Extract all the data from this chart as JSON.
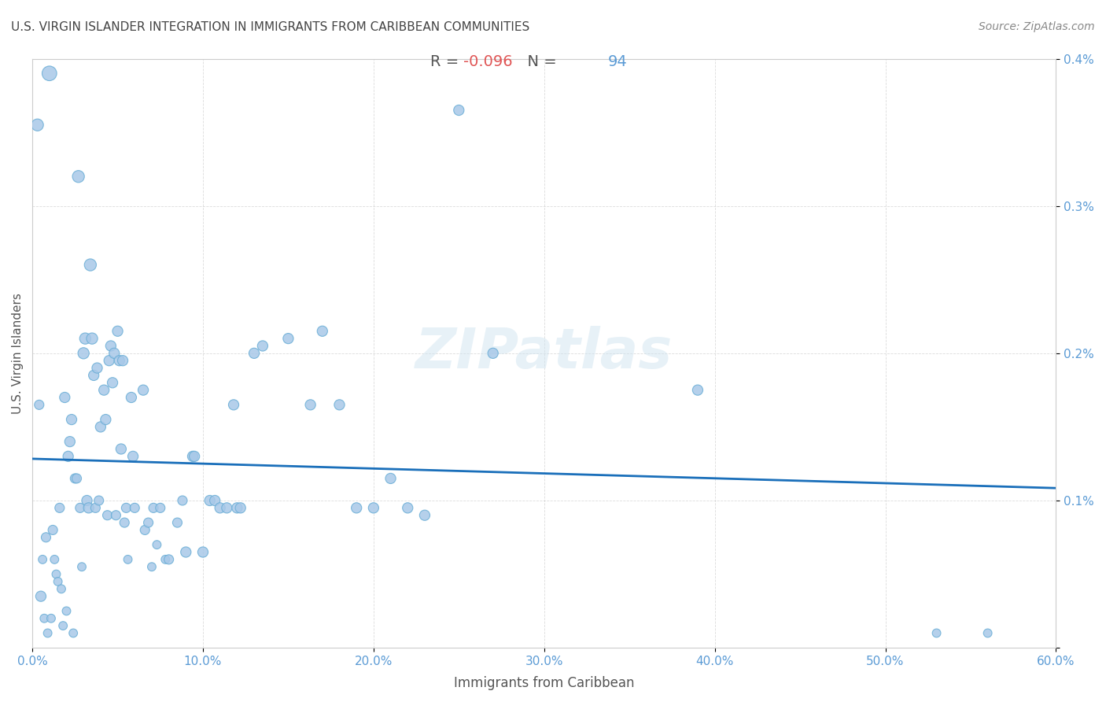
{
  "title": "U.S. VIRGIN ISLANDER INTEGRATION IN IMMIGRANTS FROM CARIBBEAN COMMUNITIES",
  "source": "Source: ZipAtlas.com",
  "xlabel": "Immigrants from Caribbean",
  "ylabel": "U.S. Virgin Islanders",
  "R": "-0.096",
  "N": "94",
  "xlim": [
    0.0,
    0.6
  ],
  "ylim": [
    0.0,
    0.004
  ],
  "xticks": [
    0.0,
    0.1,
    0.2,
    0.3,
    0.4,
    0.5,
    0.6
  ],
  "yticks": [
    0.0,
    0.001,
    0.002,
    0.003,
    0.004
  ],
  "xtick_labels": [
    "0.0%",
    "10.0%",
    "20.0%",
    "30.0%",
    "40.0%",
    "50.0%",
    "60.0%"
  ],
  "ytick_labels": [
    "",
    "0.1%",
    "0.2%",
    "0.3%",
    "0.4%"
  ],
  "scatter_color": "#a8c8e8",
  "scatter_edge_color": "#6aaed6",
  "line_color": "#1a6fba",
  "background_color": "#ffffff",
  "watermark": "ZIPatlas",
  "scatter_data": [
    [
      0.003,
      0.00355
    ],
    [
      0.004,
      0.00165
    ],
    [
      0.005,
      0.00035
    ],
    [
      0.006,
      0.0006
    ],
    [
      0.007,
      0.0002
    ],
    [
      0.008,
      0.00075
    ],
    [
      0.009,
      0.0001
    ],
    [
      0.01,
      0.0039
    ],
    [
      0.011,
      0.0002
    ],
    [
      0.012,
      0.0008
    ],
    [
      0.013,
      0.0006
    ],
    [
      0.014,
      0.0005
    ],
    [
      0.015,
      0.00045
    ],
    [
      0.016,
      0.00095
    ],
    [
      0.017,
      0.0004
    ],
    [
      0.018,
      0.00015
    ],
    [
      0.019,
      0.0017
    ],
    [
      0.02,
      0.00025
    ],
    [
      0.021,
      0.0013
    ],
    [
      0.022,
      0.0014
    ],
    [
      0.023,
      0.00155
    ],
    [
      0.024,
      0.0001
    ],
    [
      0.025,
      0.00115
    ],
    [
      0.026,
      0.00115
    ],
    [
      0.027,
      0.0032
    ],
    [
      0.028,
      0.00095
    ],
    [
      0.029,
      0.00055
    ],
    [
      0.03,
      0.002
    ],
    [
      0.031,
      0.0021
    ],
    [
      0.032,
      0.001
    ],
    [
      0.033,
      0.00095
    ],
    [
      0.034,
      0.0026
    ],
    [
      0.035,
      0.0021
    ],
    [
      0.036,
      0.00185
    ],
    [
      0.037,
      0.00095
    ],
    [
      0.038,
      0.0019
    ],
    [
      0.039,
      0.001
    ],
    [
      0.04,
      0.0015
    ],
    [
      0.042,
      0.00175
    ],
    [
      0.043,
      0.00155
    ],
    [
      0.044,
      0.0009
    ],
    [
      0.045,
      0.00195
    ],
    [
      0.046,
      0.00205
    ],
    [
      0.047,
      0.0018
    ],
    [
      0.048,
      0.002
    ],
    [
      0.049,
      0.0009
    ],
    [
      0.05,
      0.00215
    ],
    [
      0.051,
      0.00195
    ],
    [
      0.052,
      0.00135
    ],
    [
      0.053,
      0.00195
    ],
    [
      0.054,
      0.00085
    ],
    [
      0.055,
      0.00095
    ],
    [
      0.056,
      0.0006
    ],
    [
      0.058,
      0.0017
    ],
    [
      0.059,
      0.0013
    ],
    [
      0.06,
      0.00095
    ],
    [
      0.065,
      0.00175
    ],
    [
      0.066,
      0.0008
    ],
    [
      0.068,
      0.00085
    ],
    [
      0.07,
      0.00055
    ],
    [
      0.071,
      0.00095
    ],
    [
      0.073,
      0.0007
    ],
    [
      0.075,
      0.00095
    ],
    [
      0.078,
      0.0006
    ],
    [
      0.08,
      0.0006
    ],
    [
      0.085,
      0.00085
    ],
    [
      0.088,
      0.001
    ],
    [
      0.09,
      0.00065
    ],
    [
      0.094,
      0.0013
    ],
    [
      0.095,
      0.0013
    ],
    [
      0.1,
      0.00065
    ],
    [
      0.104,
      0.001
    ],
    [
      0.107,
      0.001
    ],
    [
      0.11,
      0.00095
    ],
    [
      0.114,
      0.00095
    ],
    [
      0.118,
      0.00165
    ],
    [
      0.12,
      0.00095
    ],
    [
      0.122,
      0.00095
    ],
    [
      0.13,
      0.002
    ],
    [
      0.135,
      0.00205
    ],
    [
      0.15,
      0.0021
    ],
    [
      0.163,
      0.00165
    ],
    [
      0.17,
      0.00215
    ],
    [
      0.18,
      0.00165
    ],
    [
      0.19,
      0.00095
    ],
    [
      0.2,
      0.00095
    ],
    [
      0.21,
      0.00115
    ],
    [
      0.22,
      0.00095
    ],
    [
      0.23,
      0.0009
    ],
    [
      0.25,
      0.00365
    ],
    [
      0.27,
      0.002
    ],
    [
      0.39,
      0.00175
    ],
    [
      0.53,
      0.0001
    ],
    [
      0.56,
      0.0001
    ]
  ],
  "scatter_sizes": [
    80,
    50,
    60,
    40,
    40,
    50,
    40,
    120,
    40,
    50,
    40,
    40,
    40,
    50,
    40,
    40,
    60,
    40,
    60,
    60,
    60,
    40,
    50,
    50,
    80,
    50,
    40,
    70,
    70,
    60,
    60,
    80,
    70,
    60,
    50,
    60,
    50,
    60,
    60,
    60,
    50,
    60,
    60,
    60,
    60,
    50,
    60,
    60,
    60,
    60,
    50,
    50,
    40,
    60,
    60,
    50,
    60,
    50,
    50,
    40,
    50,
    40,
    50,
    40,
    50,
    50,
    50,
    60,
    60,
    60,
    60,
    60,
    60,
    60,
    60,
    60,
    60,
    60,
    60,
    60,
    60,
    60,
    60,
    60,
    60,
    60,
    60,
    60,
    60,
    60,
    60,
    60,
    40,
    40
  ]
}
